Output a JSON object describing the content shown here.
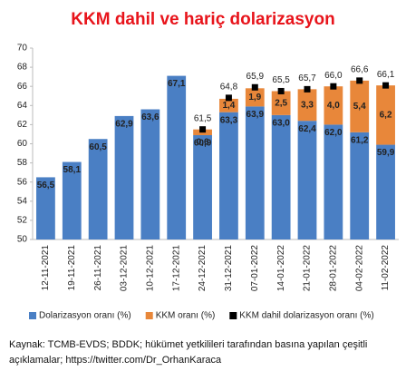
{
  "chart_data": {
    "type": "bar",
    "title": "KKM dahil ve hariç dolarizasyon",
    "categories": [
      "12-11-2021",
      "19-11-2021",
      "26-11-2021",
      "03-12-2021",
      "10-12-2021",
      "17-12-2021",
      "24-12-2021",
      "31-12-2021",
      "07-01-2022",
      "14-01-2022",
      "21-01-2022",
      "28-01-2022",
      "04-02-2022",
      "11-02-2022"
    ],
    "series": [
      {
        "name": "Dolarizasyon oranı (%)",
        "color": "#4a7fc4",
        "kind": "bar",
        "values": [
          56.5,
          58.1,
          60.5,
          62.9,
          63.6,
          67.1,
          60.9,
          63.3,
          63.9,
          63.0,
          62.4,
          62.0,
          61.2,
          59.9
        ],
        "value_labels": [
          "56,5",
          "58,1",
          "60,5",
          "62,9",
          "63,6",
          "67,1",
          "60,9",
          "63,3",
          "63,9",
          "63,0",
          "62,4",
          "62,0",
          "61,2",
          "59,9"
        ]
      },
      {
        "name": "KKM oranı (%)",
        "color": "#e8873a",
        "kind": "stack",
        "values": [
          null,
          null,
          null,
          null,
          null,
          null,
          0.6,
          1.4,
          1.9,
          2.5,
          3.3,
          4.0,
          5.4,
          6.2
        ],
        "value_labels": [
          null,
          null,
          null,
          null,
          null,
          null,
          "0,6",
          "1,4",
          "1,9",
          "2,5",
          "3,3",
          "4,0",
          "5,4",
          "6,2"
        ]
      },
      {
        "name": "KKM dahil dolarizasyon oranı (%)",
        "color": "#000000",
        "kind": "marker",
        "values": [
          null,
          null,
          null,
          null,
          null,
          null,
          61.5,
          64.8,
          65.9,
          65.5,
          65.7,
          66.0,
          66.6,
          66.1
        ],
        "value_labels": [
          null,
          null,
          null,
          null,
          null,
          null,
          "61,5",
          "64,8",
          "65,9",
          "65,5",
          "65,7",
          "66,0",
          "66,6",
          "66,1"
        ]
      }
    ],
    "ylim": [
      50,
      70
    ],
    "yticks": [
      50,
      52,
      54,
      56,
      58,
      60,
      62,
      64,
      66,
      68,
      70
    ],
    "title_color": "#e8141b",
    "source": "Kaynak: TCMB-EVDS;  BDDK; hükümet yetkilileri tarafından basına yapılan çeşitli açıklamalar; https://twitter.com/Dr_OrhanKaraca"
  }
}
